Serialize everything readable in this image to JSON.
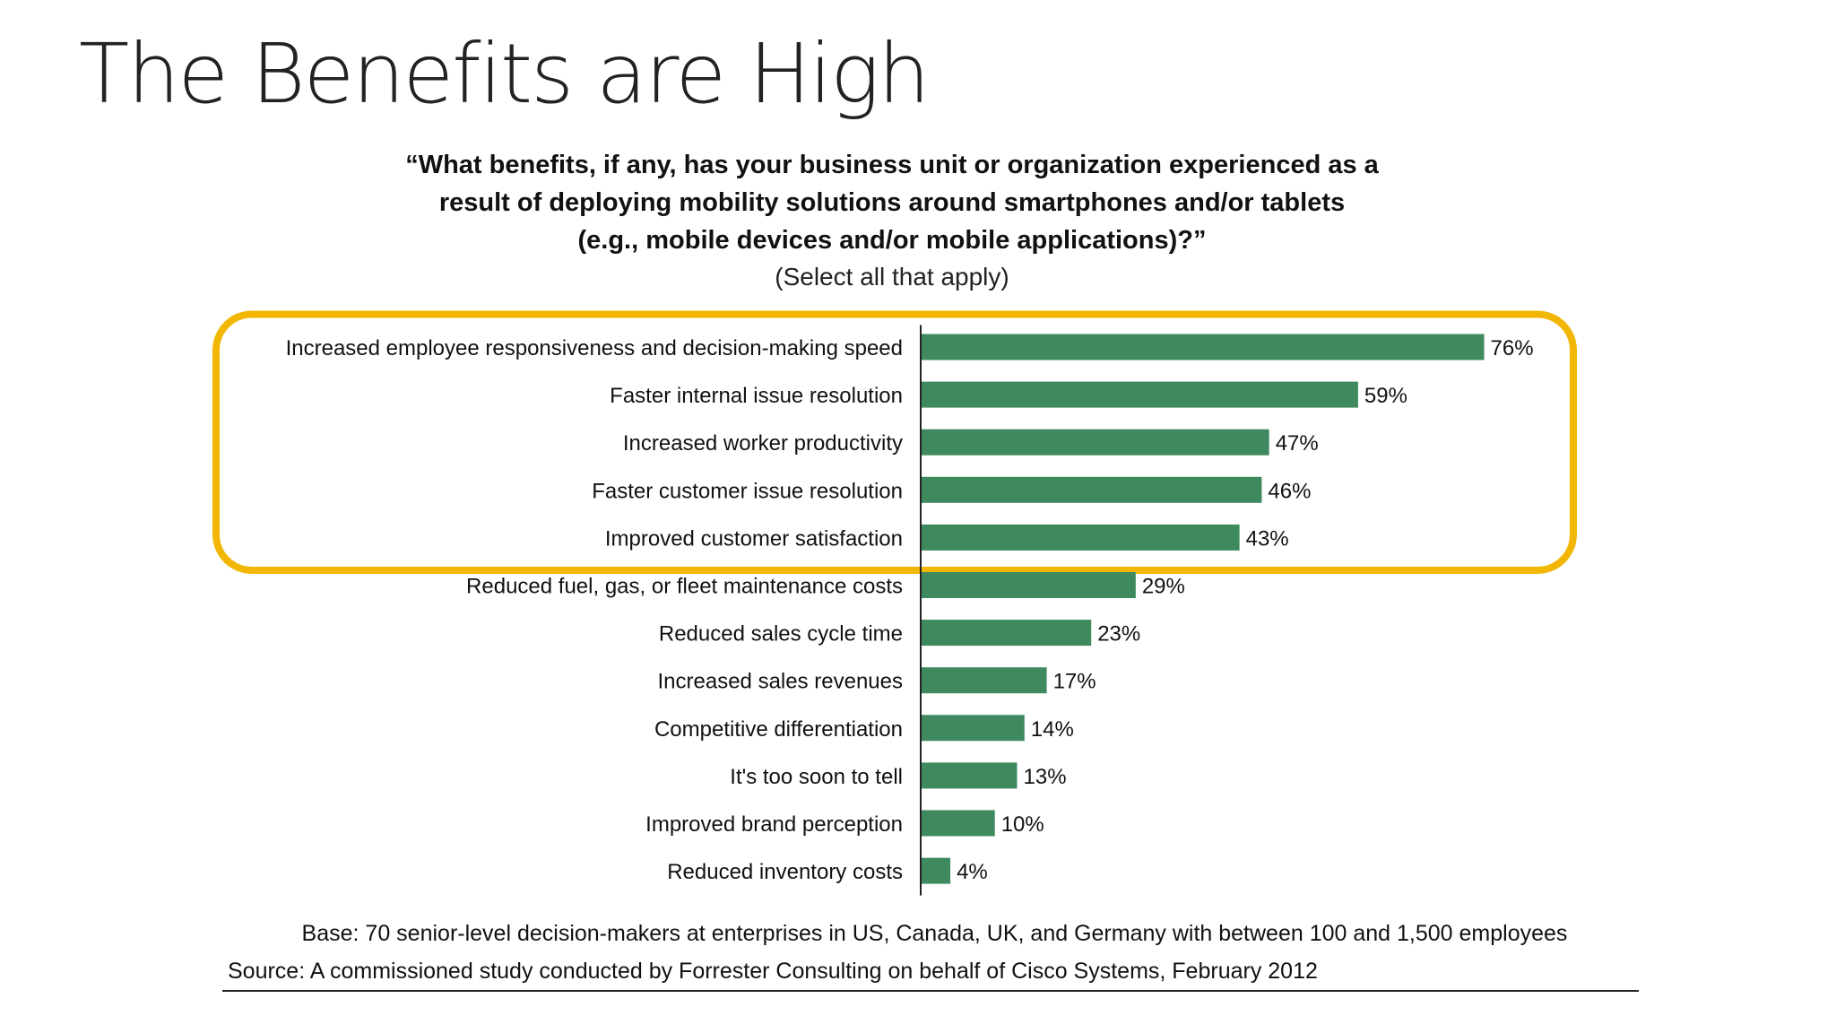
{
  "slide": {
    "title": "The Benefits are High"
  },
  "question": {
    "lines": [
      "“What benefits, if any, has your business unit or organization experienced as a",
      "result of deploying mobility solutions around smartphones and/or tablets",
      "(e.g., mobile devices and/or mobile applications)?”"
    ],
    "instruction": "(Select all that apply)"
  },
  "chart_data": {
    "type": "bar",
    "orientation": "horizontal",
    "categories": [
      "Increased employee responsiveness and decision-making speed",
      "Faster internal issue resolution",
      "Increased worker productivity",
      "Faster customer issue resolution",
      "Improved customer satisfaction",
      "Reduced fuel, gas, or fleet maintenance costs",
      "Reduced sales cycle time",
      "Increased sales revenues",
      "Competitive differentiation",
      "It's too soon to tell",
      "Improved brand perception",
      "Reduced inventory costs"
    ],
    "values": [
      76,
      59,
      47,
      46,
      43,
      29,
      23,
      17,
      14,
      13,
      10,
      4
    ],
    "value_labels": [
      "76%",
      "59%",
      "47%",
      "46%",
      "43%",
      "29%",
      "23%",
      "17%",
      "14%",
      "13%",
      "10%",
      "4%"
    ],
    "unit": "%",
    "highlight": {
      "categories_count": 5,
      "color": "#F2B705"
    },
    "colors": {
      "bar": "#3E8A5E",
      "axis": "#222222"
    },
    "grid": false,
    "legend": "none"
  },
  "footer": {
    "base": "Base: 70 senior-level decision-makers at enterprises in US, Canada, UK, and Germany with between 100 and 1,500 employees",
    "source": "Source: A commissioned study conducted by Forrester Consulting on behalf of Cisco Systems, February 2012"
  }
}
